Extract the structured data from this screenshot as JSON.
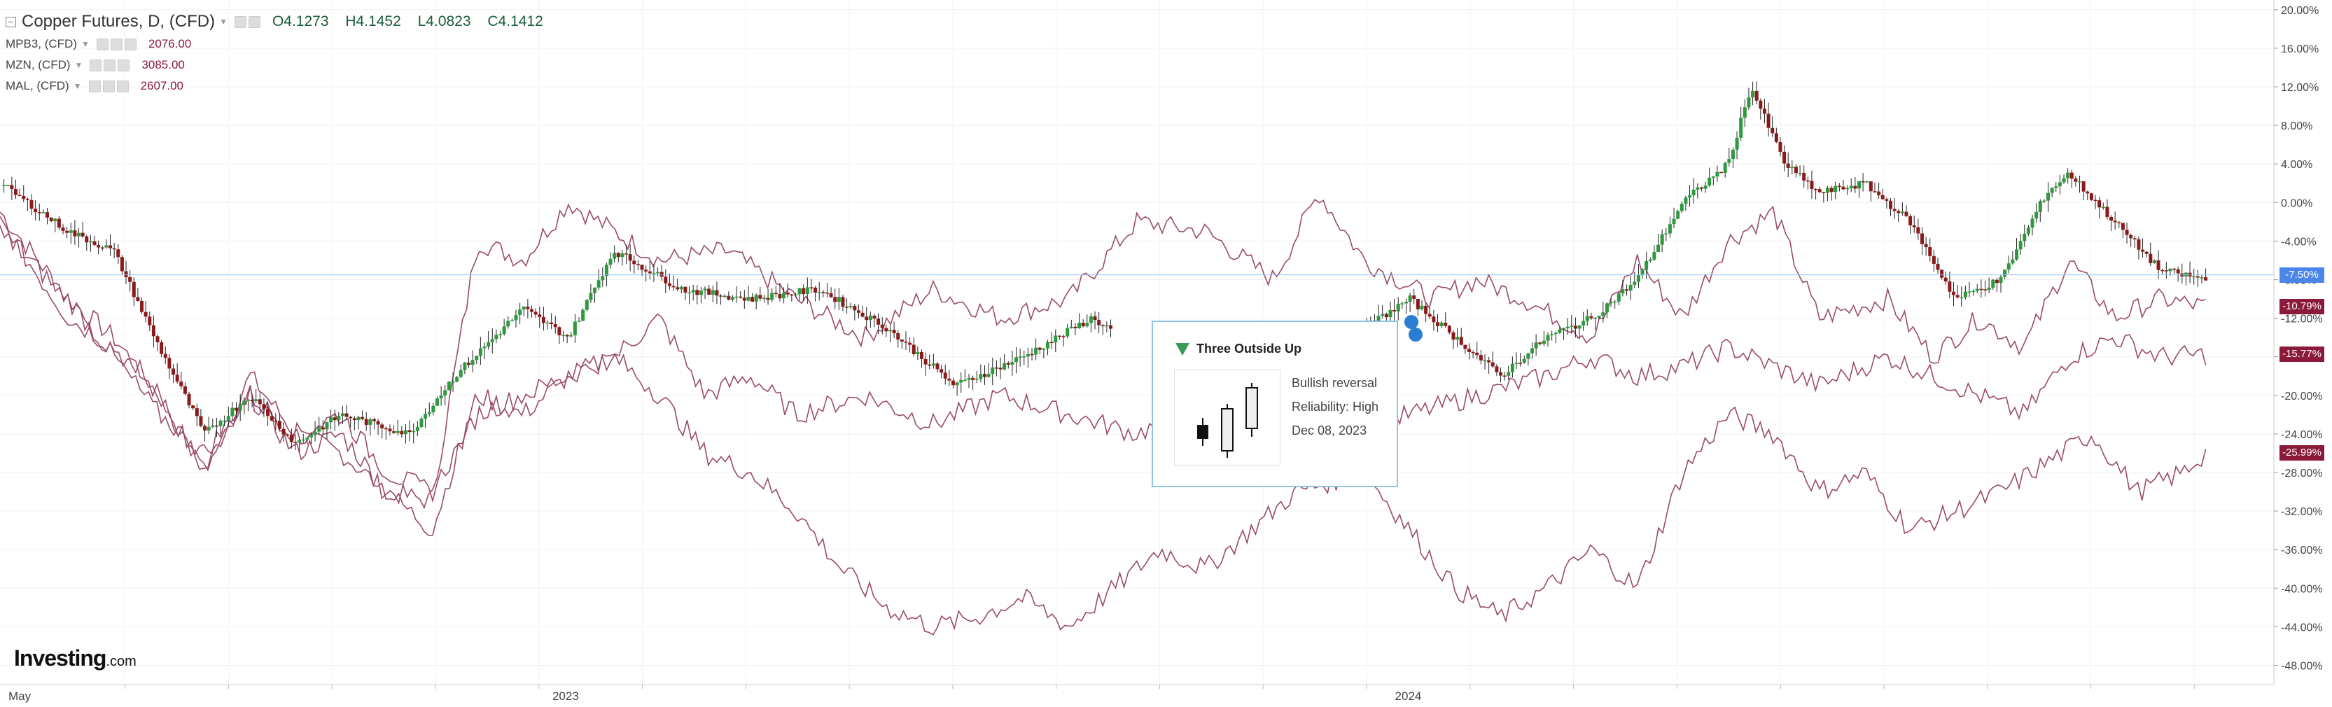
{
  "legend": {
    "main": {
      "title": "Copper Futures, D, (CFD)",
      "open": "O4.1273",
      "high": "H4.1452",
      "low": "L4.0823",
      "close": "C4.1412"
    },
    "compare": [
      {
        "symbol": "MPB3, (CFD)",
        "value": "2076.00"
      },
      {
        "symbol": "MZN, (CFD)",
        "value": "3085.00"
      },
      {
        "symbol": "MAL, (CFD)",
        "value": "2607.00"
      }
    ]
  },
  "logo": {
    "brand": "Investing",
    "suffix": ".com"
  },
  "tooltip": {
    "title": "Three Outside Up",
    "signal": "Bullish reversal",
    "reliability": "Reliability: High",
    "date": "Dec 08, 2023",
    "icon": "pattern-icon"
  },
  "colors": {
    "up": "#2e9a3e",
    "down": "#8b1a1a",
    "compare_line": "#9a4a6a",
    "crosshair": "#8ec4e8",
    "badge_main": "#4a86e8",
    "badge_compare": "#8b1a3a"
  },
  "badges": [
    {
      "label": "-7.50%",
      "value": -7.5,
      "kind": "main"
    },
    {
      "label": "-10.79%",
      "value": -10.79,
      "kind": "compare"
    },
    {
      "label": "-15.77%",
      "value": -15.77,
      "kind": "compare"
    },
    {
      "label": "-25.99%",
      "value": -25.99,
      "kind": "compare"
    }
  ],
  "chart_data": {
    "type": "line",
    "title": "Copper Futures, D, (CFD)",
    "y_unit": "%",
    "ylim": [
      -50,
      21
    ],
    "y_ticks": [
      20,
      16,
      12,
      8,
      4,
      0,
      -4,
      -8,
      -12,
      -16,
      -20,
      -24,
      -28,
      -32,
      -36,
      -40,
      -44,
      -48
    ],
    "y_tick_labels": [
      "20.00%",
      "16.00%",
      "12.00%",
      "8.00%",
      "4.00%",
      "0.00%",
      "-4.00%",
      "-8.00%",
      "-12.00%",
      "-16.00%",
      "-20.00%",
      "-24.00%",
      "-28.00%",
      "-32.00%",
      "-36.00%",
      "-40.00%",
      "-44.00%",
      "-48.00%"
    ],
    "x_range": [
      "2022-05-01",
      "2025-01-10"
    ],
    "x_ticks": [
      {
        "label": "May",
        "date": "2022-05-01"
      },
      {
        "label": "2023",
        "date": "2023-01-01"
      },
      {
        "label": "2024",
        "date": "2024-01-01"
      }
    ],
    "grid": true,
    "series": [
      {
        "kind": "candles",
        "current": -7.5,
        "points": [
          [
            0,
            2
          ],
          [
            0.03,
            -3
          ],
          [
            0.05,
            -5
          ],
          [
            0.07,
            -15
          ],
          [
            0.09,
            -24
          ],
          [
            0.11,
            -20
          ],
          [
            0.13,
            -25
          ],
          [
            0.15,
            -22
          ],
          [
            0.18,
            -24
          ],
          [
            0.2,
            -18
          ],
          [
            0.23,
            -11
          ],
          [
            0.25,
            -14
          ],
          [
            0.27,
            -5
          ],
          [
            0.3,
            -9
          ],
          [
            0.33,
            -10
          ],
          [
            0.36,
            -9
          ],
          [
            0.39,
            -13
          ],
          [
            0.42,
            -19
          ],
          [
            0.45,
            -16
          ],
          [
            0.48,
            -12
          ],
          [
            0.51,
            -16
          ],
          [
            0.54,
            -12
          ],
          [
            0.57,
            -16
          ],
          [
            0.6,
            -13
          ],
          [
            0.62,
            -10
          ],
          [
            0.64,
            -14
          ],
          [
            0.66,
            -18
          ],
          [
            0.68,
            -14
          ],
          [
            0.7,
            -12
          ],
          [
            0.72,
            -8
          ],
          [
            0.74,
            0
          ],
          [
            0.76,
            4
          ],
          [
            0.77,
            12
          ],
          [
            0.785,
            4
          ],
          [
            0.8,
            1
          ],
          [
            0.82,
            2
          ],
          [
            0.84,
            -2
          ],
          [
            0.86,
            -10
          ],
          [
            0.88,
            -8
          ],
          [
            0.9,
            1
          ],
          [
            0.91,
            3
          ],
          [
            0.93,
            -2
          ],
          [
            0.95,
            -7
          ],
          [
            0.97,
            -8
          ]
        ]
      },
      {
        "kind": "line",
        "current": -10.79,
        "points": [
          [
            0,
            -1
          ],
          [
            0.03,
            -10
          ],
          [
            0.05,
            -14
          ],
          [
            0.07,
            -20
          ],
          [
            0.09,
            -28
          ],
          [
            0.11,
            -18
          ],
          [
            0.13,
            -24
          ],
          [
            0.15,
            -26
          ],
          [
            0.17,
            -30
          ],
          [
            0.19,
            -31
          ],
          [
            0.21,
            -4
          ],
          [
            0.23,
            -6
          ],
          [
            0.25,
            0
          ],
          [
            0.27,
            -3
          ],
          [
            0.29,
            -6
          ],
          [
            0.32,
            -5
          ],
          [
            0.35,
            -10
          ],
          [
            0.38,
            -14
          ],
          [
            0.41,
            -9
          ],
          [
            0.44,
            -12
          ],
          [
            0.47,
            -10
          ],
          [
            0.5,
            -2
          ],
          [
            0.53,
            -3
          ],
          [
            0.56,
            -8
          ],
          [
            0.58,
            1
          ],
          [
            0.6,
            -6
          ],
          [
            0.63,
            -10
          ],
          [
            0.65,
            -8
          ],
          [
            0.67,
            -10
          ],
          [
            0.7,
            -14
          ],
          [
            0.72,
            -6
          ],
          [
            0.74,
            -12
          ],
          [
            0.76,
            -4
          ],
          [
            0.78,
            -1
          ],
          [
            0.8,
            -12
          ],
          [
            0.83,
            -10
          ],
          [
            0.85,
            -16
          ],
          [
            0.87,
            -12
          ],
          [
            0.89,
            -15
          ],
          [
            0.91,
            -6
          ],
          [
            0.93,
            -12
          ],
          [
            0.95,
            -10
          ],
          [
            0.97,
            -10.8
          ]
        ]
      },
      {
        "kind": "line",
        "current": -15.77,
        "points": [
          [
            0,
            -2
          ],
          [
            0.03,
            -12
          ],
          [
            0.05,
            -15
          ],
          [
            0.07,
            -20
          ],
          [
            0.09,
            -28
          ],
          [
            0.11,
            -20
          ],
          [
            0.13,
            -26
          ],
          [
            0.15,
            -24
          ],
          [
            0.17,
            -30
          ],
          [
            0.19,
            -34
          ],
          [
            0.21,
            -20
          ],
          [
            0.23,
            -22
          ],
          [
            0.25,
            -18
          ],
          [
            0.27,
            -16
          ],
          [
            0.29,
            -12
          ],
          [
            0.31,
            -20
          ],
          [
            0.33,
            -18
          ],
          [
            0.35,
            -22
          ],
          [
            0.38,
            -20
          ],
          [
            0.41,
            -23
          ],
          [
            0.44,
            -20
          ],
          [
            0.47,
            -22
          ],
          [
            0.5,
            -24
          ],
          [
            0.53,
            -21
          ],
          [
            0.56,
            -22
          ],
          [
            0.59,
            -24
          ],
          [
            0.62,
            -22
          ],
          [
            0.65,
            -20
          ],
          [
            0.68,
            -18
          ],
          [
            0.7,
            -16
          ],
          [
            0.72,
            -18
          ],
          [
            0.74,
            -17
          ],
          [
            0.76,
            -15
          ],
          [
            0.78,
            -17
          ],
          [
            0.8,
            -19
          ],
          [
            0.83,
            -16
          ],
          [
            0.85,
            -18
          ],
          [
            0.87,
            -20
          ],
          [
            0.89,
            -22
          ],
          [
            0.91,
            -16
          ],
          [
            0.93,
            -14
          ],
          [
            0.95,
            -16
          ],
          [
            0.97,
            -15.8
          ]
        ]
      },
      {
        "kind": "line",
        "current": -25.99,
        "points": [
          [
            0,
            -3
          ],
          [
            0.03,
            -10
          ],
          [
            0.05,
            -16
          ],
          [
            0.07,
            -22
          ],
          [
            0.09,
            -26
          ],
          [
            0.11,
            -20
          ],
          [
            0.13,
            -24
          ],
          [
            0.15,
            -22
          ],
          [
            0.17,
            -28
          ],
          [
            0.19,
            -30
          ],
          [
            0.21,
            -22
          ],
          [
            0.23,
            -20
          ],
          [
            0.25,
            -18
          ],
          [
            0.27,
            -16
          ],
          [
            0.29,
            -20
          ],
          [
            0.31,
            -26
          ],
          [
            0.33,
            -28
          ],
          [
            0.35,
            -32
          ],
          [
            0.37,
            -38
          ],
          [
            0.39,
            -42
          ],
          [
            0.41,
            -44
          ],
          [
            0.43,
            -43
          ],
          [
            0.45,
            -41
          ],
          [
            0.47,
            -44
          ],
          [
            0.49,
            -40
          ],
          [
            0.51,
            -36
          ],
          [
            0.53,
            -38
          ],
          [
            0.55,
            -34
          ],
          [
            0.57,
            -30
          ],
          [
            0.6,
            -28
          ],
          [
            0.62,
            -34
          ],
          [
            0.64,
            -40
          ],
          [
            0.66,
            -43
          ],
          [
            0.68,
            -40
          ],
          [
            0.7,
            -36
          ],
          [
            0.72,
            -40
          ],
          [
            0.74,
            -28
          ],
          [
            0.76,
            -22
          ],
          [
            0.78,
            -24
          ],
          [
            0.8,
            -30
          ],
          [
            0.82,
            -28
          ],
          [
            0.84,
            -34
          ],
          [
            0.86,
            -32
          ],
          [
            0.88,
            -30
          ],
          [
            0.9,
            -27
          ],
          [
            0.92,
            -24
          ],
          [
            0.94,
            -30
          ],
          [
            0.96,
            -28
          ],
          [
            0.97,
            -26
          ]
        ]
      }
    ]
  }
}
